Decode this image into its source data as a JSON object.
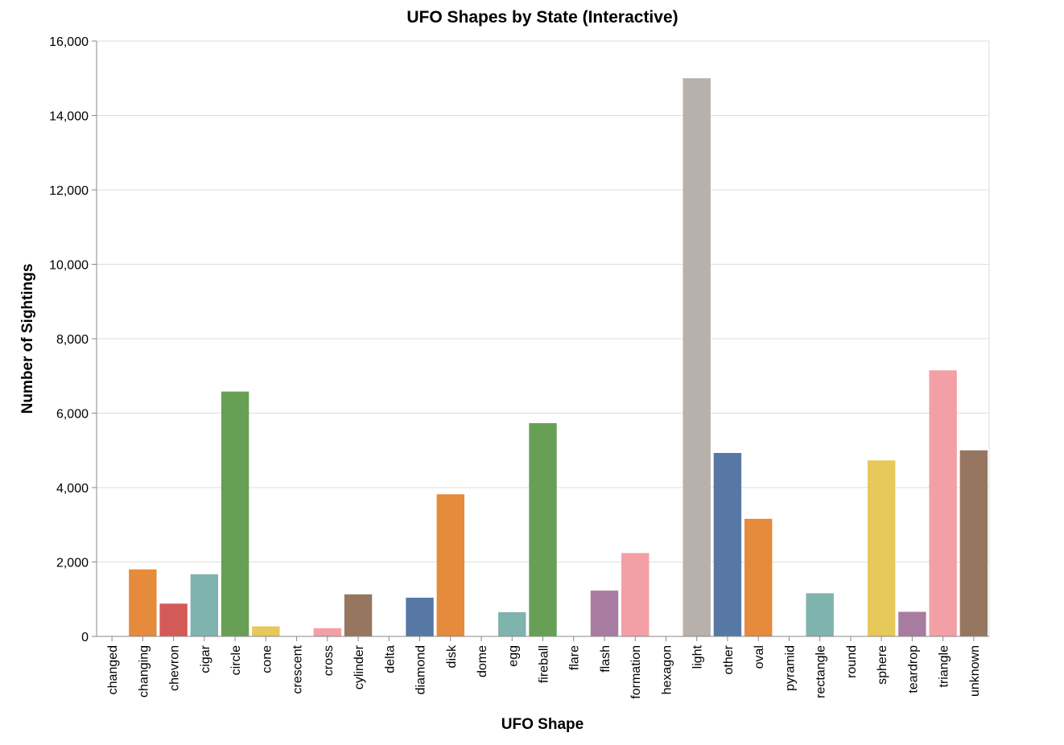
{
  "chart_data": {
    "type": "bar",
    "title": "UFO Shapes by State (Interactive)",
    "xlabel": "UFO Shape",
    "ylabel": "Number of Sightings",
    "ylim": [
      0,
      16000
    ],
    "yticks": [
      0,
      2000,
      4000,
      6000,
      8000,
      10000,
      12000,
      14000,
      16000
    ],
    "ytick_labels": [
      "0",
      "2,000",
      "4,000",
      "6,000",
      "8,000",
      "10,000",
      "12,000",
      "14,000",
      "16,000"
    ],
    "grid": true,
    "categories": [
      "changed",
      "changing",
      "chevron",
      "cigar",
      "circle",
      "cone",
      "crescent",
      "cross",
      "cylinder",
      "delta",
      "diamond",
      "disk",
      "dome",
      "egg",
      "fireball",
      "flare",
      "flash",
      "formation",
      "hexagon",
      "light",
      "other",
      "oval",
      "pyramid",
      "rectangle",
      "round",
      "sphere",
      "teardrop",
      "triangle",
      "unknown"
    ],
    "values": [
      1,
      1800,
      880,
      1670,
      6580,
      270,
      2,
      220,
      1130,
      7,
      1040,
      3820,
      1,
      650,
      5730,
      1,
      1230,
      2240,
      1,
      15000,
      4930,
      3160,
      1,
      1160,
      2,
      4730,
      660,
      7150,
      5000
    ],
    "colors": [
      "#e4ad9b",
      "#e68a3c",
      "#d45a57",
      "#7fb3ae",
      "#67a055",
      "#e7c85a",
      "#a87ca0",
      "#f39fa6",
      "#977660",
      "#b8b0ab",
      "#5778a4",
      "#e68a3c",
      "#d45a57",
      "#7fb3ae",
      "#67a055",
      "#e7c85a",
      "#a87ca0",
      "#f39fa6",
      "#977660",
      "#b8b0ab",
      "#5778a4",
      "#e68a3c",
      "#d45a57",
      "#7fb3ae",
      "#67a055",
      "#e7c85a",
      "#a87ca0",
      "#f39fa6",
      "#977660"
    ]
  }
}
